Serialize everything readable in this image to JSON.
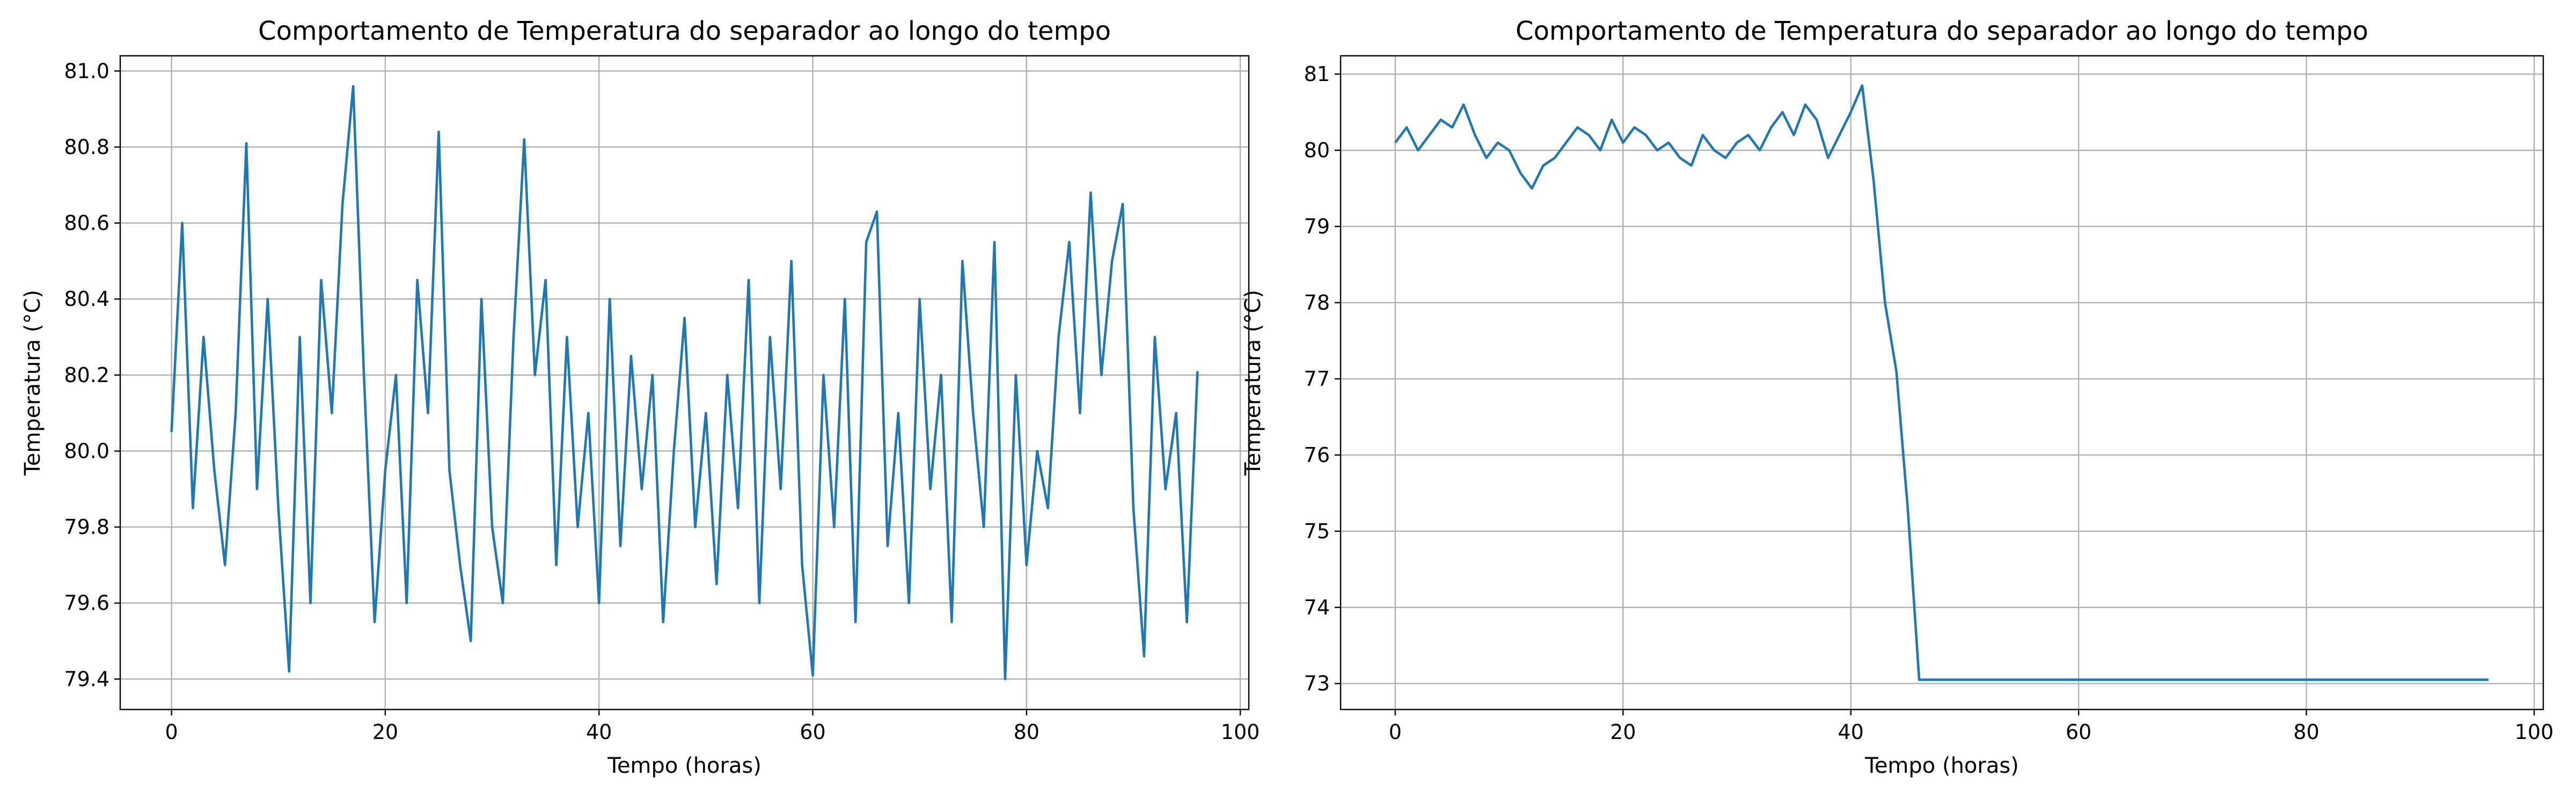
{
  "chart_data": [
    {
      "type": "line",
      "title": "Comportamento de Temperatura do separador ao longo do tempo",
      "xlabel": "Tempo (horas)",
      "ylabel": "Temperatura (°C)",
      "x": [
        0,
        1,
        2,
        3,
        4,
        5,
        6,
        7,
        8,
        9,
        10,
        11,
        12,
        13,
        14,
        15,
        16,
        17,
        18,
        19,
        20,
        21,
        22,
        23,
        24,
        25,
        26,
        27,
        28,
        29,
        30,
        31,
        32,
        33,
        34,
        35,
        36,
        37,
        38,
        39,
        40,
        41,
        42,
        43,
        44,
        45,
        46,
        47,
        48,
        49,
        50,
        51,
        52,
        53,
        54,
        55,
        56,
        57,
        58,
        59,
        60,
        61,
        62,
        63,
        64,
        65,
        66,
        67,
        68,
        69,
        70,
        71,
        72,
        73,
        74,
        75,
        76,
        77,
        78,
        79,
        80,
        81,
        82,
        83,
        84,
        85,
        86,
        87,
        88,
        89,
        90,
        91,
        92,
        93,
        94,
        95,
        96
      ],
      "series": [
        {
          "color": "#1f77b4",
          "values": [
            80.05,
            80.6,
            79.85,
            80.3,
            79.95,
            79.7,
            80.1,
            80.81,
            79.9,
            80.4,
            79.85,
            79.42,
            80.3,
            79.6,
            80.45,
            80.1,
            80.65,
            80.96,
            80.2,
            79.55,
            79.95,
            80.2,
            79.6,
            80.45,
            80.1,
            80.84,
            79.95,
            79.7,
            79.5,
            80.4,
            79.8,
            79.6,
            80.3,
            80.82,
            80.2,
            80.45,
            79.7,
            80.3,
            79.8,
            80.1,
            79.6,
            80.4,
            79.75,
            80.25,
            79.9,
            80.2,
            79.55,
            80.0,
            80.35,
            79.8,
            80.1,
            79.65,
            80.2,
            79.85,
            80.45,
            79.6,
            80.3,
            79.9,
            80.5,
            79.7,
            79.41,
            80.2,
            79.8,
            80.4,
            79.55,
            80.55,
            80.63,
            79.75,
            80.1,
            79.6,
            80.4,
            79.9,
            80.2,
            79.55,
            80.5,
            80.1,
            79.8,
            80.55,
            79.4,
            80.2,
            79.7,
            80.0,
            79.85,
            80.3,
            80.55,
            80.1,
            80.68,
            80.2,
            80.5,
            80.65,
            79.85,
            79.46,
            80.3,
            79.9,
            80.1,
            79.55,
            80.21
          ]
        }
      ],
      "xlim": [
        -4.8,
        100.8
      ],
      "xticks": [
        0,
        20,
        40,
        60,
        80,
        100
      ],
      "ylim": [
        79.32,
        81.04
      ],
      "yticks": [
        79.4,
        79.6,
        79.8,
        {
          "value": 80,
          "label": "80.0"
        },
        80.2,
        80.4,
        80.6,
        80.8,
        {
          "value": 81,
          "label": "81.0"
        }
      ],
      "grid": true
    },
    {
      "type": "line",
      "title": "Comportamento de Temperatura do separador ao longo do tempo",
      "xlabel": "Tempo (horas)",
      "ylabel": "Temperatura (°C)",
      "x": [
        0,
        1,
        2,
        3,
        4,
        5,
        6,
        7,
        8,
        9,
        10,
        11,
        12,
        13,
        14,
        15,
        16,
        17,
        18,
        19,
        20,
        21,
        22,
        23,
        24,
        25,
        26,
        27,
        28,
        29,
        30,
        31,
        32,
        33,
        34,
        35,
        36,
        37,
        38,
        39,
        40,
        41,
        42,
        43,
        44,
        45,
        46,
        96
      ],
      "series": [
        {
          "color": "#1f77b4",
          "values": [
            80.1,
            80.3,
            80.0,
            80.2,
            80.4,
            80.3,
            80.6,
            80.2,
            79.9,
            80.1,
            80.0,
            79.7,
            79.5,
            79.8,
            79.9,
            80.1,
            80.3,
            80.2,
            80.0,
            80.4,
            80.1,
            80.3,
            80.2,
            80.0,
            80.1,
            79.9,
            79.8,
            80.2,
            80.0,
            79.9,
            80.1,
            80.2,
            80.0,
            80.3,
            80.5,
            80.2,
            80.6,
            80.4,
            79.9,
            80.2,
            80.5,
            80.85,
            79.6,
            78.0,
            77.1,
            75.3,
            73.05,
            73.05
          ]
        }
      ],
      "xlim": [
        -4.8,
        100.8
      ],
      "xticks": [
        0,
        20,
        40,
        60,
        80,
        100
      ],
      "ylim": [
        72.66,
        81.24
      ],
      "yticks": [
        73,
        74,
        75,
        76,
        77,
        78,
        79,
        80,
        81
      ],
      "grid": true
    }
  ]
}
